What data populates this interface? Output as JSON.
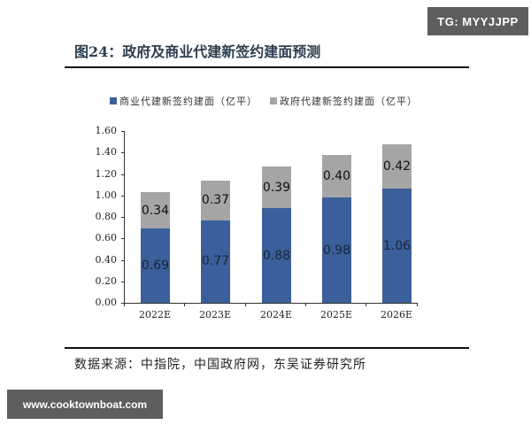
{
  "watermark_top": "TG: MYYJJPP",
  "watermark_bottom": "www.cooktownboat.com",
  "figure_title": "图24：政府及商业代建新签约建面预测",
  "source_note": "数据来源：中指院，中国政府网，东吴证券研究所",
  "legend": [
    {
      "label": "商业代建新签约建面（亿平）",
      "color": "#3b5f9a"
    },
    {
      "label": "政府代建新签约建面（亿平）",
      "color": "#a5a5a5"
    }
  ],
  "yticks": [
    "0.00",
    "0.20",
    "0.40",
    "0.60",
    "0.80",
    "1.00",
    "1.20",
    "1.40",
    "1.60"
  ],
  "chart_data": {
    "type": "bar",
    "stacked": true,
    "title": "图24：政府及商业代建新签约建面预测",
    "categories": [
      "2022E",
      "2023E",
      "2024E",
      "2025E",
      "2026E"
    ],
    "series": [
      {
        "name": "商业代建新签约建面（亿平）",
        "color": "#3b5f9a",
        "values": [
          0.69,
          0.77,
          0.88,
          0.98,
          1.06
        ]
      },
      {
        "name": "政府代建新签约建面（亿平）",
        "color": "#a5a5a5",
        "values": [
          0.34,
          0.37,
          0.39,
          0.4,
          0.42
        ]
      }
    ],
    "value_labels": {
      "commercial": [
        "0.69",
        "0.77",
        "0.88",
        "0.98",
        "1.06"
      ],
      "government": [
        "0.34",
        "0.37",
        "0.39",
        "0.40",
        "0.42"
      ]
    },
    "xlabel": "",
    "ylabel": "",
    "ylim": [
      0,
      1.6
    ],
    "ytick_step": 0.2,
    "grid": false,
    "legend_position": "top"
  }
}
